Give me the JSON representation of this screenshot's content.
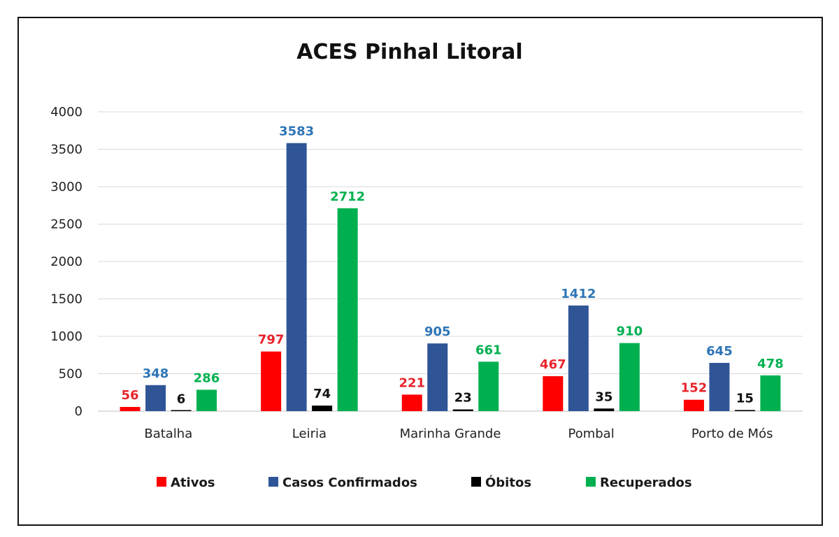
{
  "chart_data": {
    "type": "bar",
    "title": "ACES Pinhal Litoral",
    "xlabel": "",
    "ylabel": "",
    "ylim": [
      0,
      4000
    ],
    "yticks": [
      0,
      500,
      1000,
      1500,
      2000,
      2500,
      3000,
      3500,
      4000
    ],
    "grid": true,
    "legend_position": "bottom",
    "categories": [
      "Batalha",
      "Leiria",
      "Marinha Grande",
      "Pombal",
      "Porto de Mós"
    ],
    "series": [
      {
        "name": "Ativos",
        "color": "#ff0000",
        "label_color": "#e8242c",
        "values": [
          56,
          797,
          221,
          467,
          152
        ]
      },
      {
        "name": "Casos Confirmados",
        "color": "#2f5597",
        "label_color": "#2e75b6",
        "values": [
          348,
          3583,
          905,
          1412,
          645
        ]
      },
      {
        "name": "Óbitos",
        "color": "#000000",
        "label_color": "#111111",
        "values": [
          6,
          74,
          23,
          35,
          15
        ]
      },
      {
        "name": "Recuperados",
        "color": "#00b050",
        "label_color": "#00b050",
        "values": [
          286,
          2712,
          661,
          910,
          478
        ]
      }
    ]
  }
}
